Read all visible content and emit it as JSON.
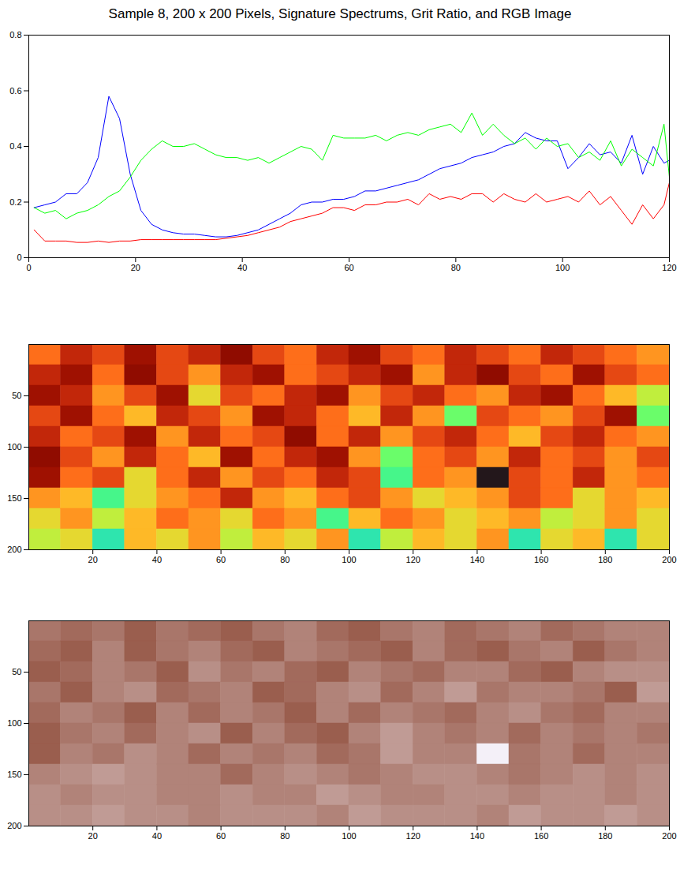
{
  "chart_data": [
    {
      "type": "line",
      "title": "Sample 8, 200 x 200 Pixels, Signature Spectrums, Grit Ratio, and RGB Image",
      "xlim": [
        0,
        120
      ],
      "ylim": [
        0,
        0.8
      ],
      "xticks": [
        0,
        20,
        40,
        60,
        80,
        100,
        120
      ],
      "yticks": [
        0,
        0.2,
        0.4,
        0.6,
        0.8
      ],
      "x": [
        1,
        3,
        5,
        7,
        9,
        11,
        13,
        15,
        17,
        19,
        21,
        23,
        25,
        27,
        29,
        31,
        33,
        35,
        37,
        39,
        41,
        43,
        45,
        47,
        49,
        51,
        53,
        55,
        57,
        59,
        61,
        63,
        65,
        67,
        69,
        71,
        73,
        75,
        77,
        79,
        81,
        83,
        85,
        87,
        89,
        91,
        93,
        95,
        97,
        99,
        101,
        103,
        105,
        107,
        109,
        111,
        113,
        115,
        117,
        119,
        120
      ],
      "series": [
        {
          "color": "#0000ff",
          "values": [
            0.18,
            0.19,
            0.2,
            0.23,
            0.23,
            0.27,
            0.36,
            0.58,
            0.5,
            0.3,
            0.17,
            0.12,
            0.1,
            0.09,
            0.085,
            0.085,
            0.08,
            0.075,
            0.075,
            0.08,
            0.09,
            0.1,
            0.12,
            0.14,
            0.16,
            0.19,
            0.2,
            0.2,
            0.21,
            0.21,
            0.22,
            0.24,
            0.24,
            0.25,
            0.26,
            0.27,
            0.28,
            0.3,
            0.32,
            0.33,
            0.34,
            0.36,
            0.37,
            0.38,
            0.4,
            0.41,
            0.45,
            0.43,
            0.42,
            0.42,
            0.32,
            0.36,
            0.41,
            0.37,
            0.38,
            0.34,
            0.44,
            0.3,
            0.4,
            0.34,
            0.35
          ]
        },
        {
          "color": "#00ff00",
          "values": [
            0.18,
            0.16,
            0.17,
            0.14,
            0.16,
            0.17,
            0.19,
            0.22,
            0.24,
            0.29,
            0.35,
            0.39,
            0.42,
            0.4,
            0.4,
            0.41,
            0.39,
            0.37,
            0.36,
            0.36,
            0.35,
            0.36,
            0.34,
            0.36,
            0.38,
            0.4,
            0.39,
            0.35,
            0.44,
            0.43,
            0.43,
            0.43,
            0.44,
            0.42,
            0.44,
            0.45,
            0.44,
            0.46,
            0.47,
            0.48,
            0.45,
            0.52,
            0.44,
            0.48,
            0.44,
            0.41,
            0.43,
            0.39,
            0.43,
            0.4,
            0.41,
            0.36,
            0.38,
            0.35,
            0.42,
            0.33,
            0.39,
            0.36,
            0.33,
            0.48,
            0.29
          ]
        },
        {
          "color": "#ff0000",
          "values": [
            0.1,
            0.06,
            0.06,
            0.06,
            0.055,
            0.055,
            0.06,
            0.055,
            0.06,
            0.06,
            0.065,
            0.065,
            0.065,
            0.065,
            0.065,
            0.065,
            0.065,
            0.065,
            0.07,
            0.075,
            0.08,
            0.09,
            0.1,
            0.11,
            0.13,
            0.14,
            0.15,
            0.16,
            0.18,
            0.18,
            0.17,
            0.19,
            0.19,
            0.2,
            0.2,
            0.21,
            0.19,
            0.23,
            0.21,
            0.22,
            0.21,
            0.23,
            0.23,
            0.2,
            0.23,
            0.21,
            0.2,
            0.23,
            0.2,
            0.21,
            0.22,
            0.2,
            0.24,
            0.19,
            0.22,
            0.17,
            0.12,
            0.19,
            0.14,
            0.19,
            0.27
          ]
        }
      ]
    },
    {
      "type": "heatmap",
      "xlim": [
        0,
        200
      ],
      "ylim": [
        0,
        200
      ],
      "xticks": [
        20,
        40,
        60,
        80,
        100,
        120,
        140,
        160,
        180,
        200
      ],
      "yticks": [
        50,
        100,
        150,
        200
      ],
      "cells": [
        [
          0.75,
          0.85,
          0.8,
          0.9,
          0.8,
          0.85,
          0.95,
          0.8,
          0.75,
          0.85,
          0.9,
          0.8,
          0.75,
          0.85,
          0.8,
          0.75,
          0.85,
          0.8,
          0.75,
          0.7
        ],
        [
          0.85,
          0.9,
          0.75,
          0.95,
          0.8,
          0.7,
          0.85,
          0.9,
          0.75,
          0.8,
          0.85,
          0.9,
          0.7,
          0.85,
          0.95,
          0.8,
          0.75,
          0.9,
          0.8,
          0.75
        ],
        [
          0.9,
          0.85,
          0.7,
          0.8,
          0.9,
          0.6,
          0.8,
          0.75,
          0.85,
          0.9,
          0.7,
          0.8,
          0.85,
          0.75,
          0.7,
          0.85,
          0.9,
          0.75,
          0.65,
          0.55
        ],
        [
          0.8,
          0.9,
          0.75,
          0.65,
          0.85,
          0.8,
          0.7,
          0.9,
          0.85,
          0.75,
          0.65,
          0.85,
          0.7,
          0.45,
          0.8,
          0.75,
          0.7,
          0.8,
          0.9,
          0.45
        ],
        [
          0.85,
          0.75,
          0.8,
          0.9,
          0.7,
          0.85,
          0.75,
          0.8,
          0.95,
          0.75,
          0.85,
          0.7,
          0.8,
          0.85,
          0.75,
          0.65,
          0.8,
          0.85,
          0.75,
          0.7
        ],
        [
          0.95,
          0.8,
          0.7,
          0.85,
          0.75,
          0.65,
          0.9,
          0.75,
          0.85,
          0.9,
          0.7,
          0.45,
          0.75,
          0.8,
          0.7,
          0.85,
          0.75,
          0.8,
          0.7,
          0.8
        ],
        [
          0.9,
          0.75,
          0.8,
          0.6,
          0.75,
          0.85,
          0.7,
          0.8,
          0.75,
          0.85,
          0.8,
          0.4,
          0.75,
          0.7,
          0.05,
          0.8,
          0.75,
          0.85,
          0.7,
          0.75
        ],
        [
          0.7,
          0.65,
          0.4,
          0.6,
          0.7,
          0.75,
          0.85,
          0.7,
          0.65,
          0.75,
          0.8,
          0.7,
          0.6,
          0.65,
          0.7,
          0.8,
          0.75,
          0.6,
          0.7,
          0.65
        ],
        [
          0.6,
          0.7,
          0.55,
          0.65,
          0.75,
          0.7,
          0.6,
          0.75,
          0.7,
          0.4,
          0.65,
          0.75,
          0.7,
          0.6,
          0.65,
          0.7,
          0.55,
          0.6,
          0.7,
          0.6
        ],
        [
          0.55,
          0.6,
          0.35,
          0.65,
          0.6,
          0.7,
          0.55,
          0.65,
          0.6,
          0.7,
          0.35,
          0.55,
          0.65,
          0.6,
          0.7,
          0.35,
          0.6,
          0.65,
          0.35,
          0.6
        ]
      ]
    },
    {
      "type": "image",
      "xlim": [
        0,
        200
      ],
      "ylim": [
        0,
        200
      ],
      "xticks": [
        20,
        40,
        60,
        80,
        100,
        120,
        140,
        160,
        180,
        200
      ],
      "yticks": [
        50,
        100,
        150,
        200
      ],
      "cells": [
        [
          0.5,
          0.45,
          0.5,
          0.4,
          0.5,
          0.45,
          0.4,
          0.5,
          0.55,
          0.45,
          0.4,
          0.5,
          0.55,
          0.45,
          0.5,
          0.55,
          0.45,
          0.5,
          0.55,
          0.55
        ],
        [
          0.45,
          0.4,
          0.55,
          0.4,
          0.5,
          0.55,
          0.45,
          0.4,
          0.55,
          0.5,
          0.45,
          0.4,
          0.55,
          0.45,
          0.4,
          0.5,
          0.55,
          0.4,
          0.5,
          0.55
        ],
        [
          0.4,
          0.45,
          0.55,
          0.5,
          0.4,
          0.6,
          0.5,
          0.55,
          0.45,
          0.4,
          0.55,
          0.5,
          0.45,
          0.55,
          0.55,
          0.45,
          0.4,
          0.55,
          0.6,
          0.6
        ],
        [
          0.5,
          0.4,
          0.55,
          0.6,
          0.45,
          0.5,
          0.55,
          0.4,
          0.45,
          0.55,
          0.6,
          0.45,
          0.55,
          0.65,
          0.5,
          0.55,
          0.55,
          0.5,
          0.4,
          0.65
        ],
        [
          0.45,
          0.55,
          0.5,
          0.4,
          0.55,
          0.45,
          0.55,
          0.5,
          0.4,
          0.55,
          0.45,
          0.55,
          0.5,
          0.45,
          0.55,
          0.6,
          0.5,
          0.45,
          0.55,
          0.55
        ],
        [
          0.4,
          0.5,
          0.55,
          0.45,
          0.55,
          0.6,
          0.4,
          0.55,
          0.45,
          0.4,
          0.55,
          0.65,
          0.55,
          0.5,
          0.55,
          0.45,
          0.55,
          0.5,
          0.55,
          0.5
        ],
        [
          0.4,
          0.55,
          0.5,
          0.6,
          0.55,
          0.45,
          0.55,
          0.5,
          0.55,
          0.45,
          0.5,
          0.65,
          0.55,
          0.55,
          1,
          0.5,
          0.55,
          0.45,
          0.55,
          0.55
        ],
        [
          0.55,
          0.6,
          0.65,
          0.6,
          0.55,
          0.55,
          0.45,
          0.55,
          0.6,
          0.55,
          0.5,
          0.55,
          0.6,
          0.6,
          0.55,
          0.5,
          0.55,
          0.6,
          0.55,
          0.6
        ],
        [
          0.6,
          0.55,
          0.6,
          0.6,
          0.55,
          0.55,
          0.6,
          0.55,
          0.55,
          0.65,
          0.6,
          0.55,
          0.55,
          0.6,
          0.6,
          0.55,
          0.6,
          0.6,
          0.55,
          0.6
        ],
        [
          0.6,
          0.6,
          0.65,
          0.6,
          0.6,
          0.55,
          0.6,
          0.6,
          0.6,
          0.55,
          0.65,
          0.6,
          0.6,
          0.6,
          0.55,
          0.65,
          0.6,
          0.6,
          0.65,
          0.6
        ]
      ]
    }
  ]
}
